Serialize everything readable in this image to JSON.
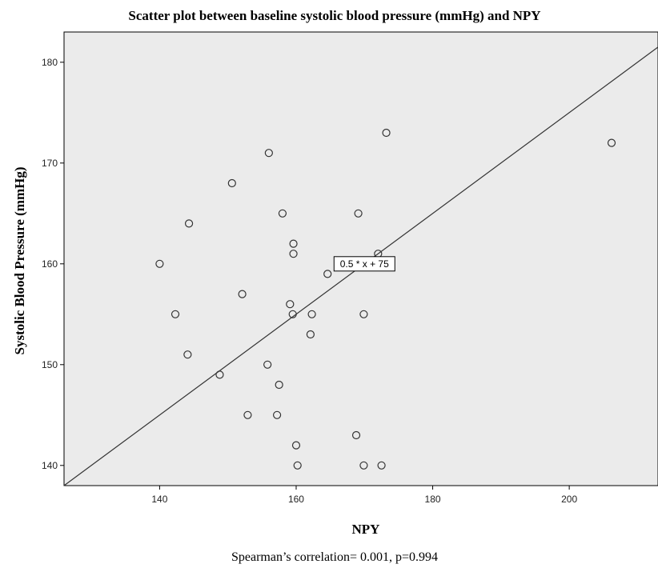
{
  "chart_data": {
    "type": "scatter",
    "title": "Scatter plot between baseline systolic blood pressure (mmHg) and NPY",
    "xlabel": "NPY",
    "ylabel": "Systolic Blood Pressure (mmHg)",
    "xlim": [
      126,
      213
    ],
    "ylim": [
      138,
      183
    ],
    "xticks": [
      140,
      160,
      180,
      200
    ],
    "yticks": [
      140,
      150,
      160,
      170,
      180
    ],
    "grid": false,
    "background": "#ebebeb",
    "point_color": "#333333",
    "fit_line": {
      "slope": 0.5,
      "intercept": 75,
      "label": "0.5 * x + 75",
      "label_at": [
        170,
        160
      ]
    },
    "annotation": "Spearman’s correlation= 0.001, p=0.994",
    "points": [
      {
        "x": 173.2,
        "y": 173
      },
      {
        "x": 206.2,
        "y": 172
      },
      {
        "x": 156.0,
        "y": 171
      },
      {
        "x": 150.6,
        "y": 168
      },
      {
        "x": 158.0,
        "y": 165
      },
      {
        "x": 169.1,
        "y": 165
      },
      {
        "x": 144.3,
        "y": 164
      },
      {
        "x": 159.6,
        "y": 162
      },
      {
        "x": 159.6,
        "y": 161
      },
      {
        "x": 172.0,
        "y": 161
      },
      {
        "x": 140.0,
        "y": 160
      },
      {
        "x": 164.6,
        "y": 159
      },
      {
        "x": 152.1,
        "y": 157
      },
      {
        "x": 159.1,
        "y": 156
      },
      {
        "x": 142.3,
        "y": 155
      },
      {
        "x": 159.5,
        "y": 155
      },
      {
        "x": 162.3,
        "y": 155
      },
      {
        "x": 169.9,
        "y": 155
      },
      {
        "x": 162.1,
        "y": 153
      },
      {
        "x": 144.1,
        "y": 151
      },
      {
        "x": 155.8,
        "y": 150
      },
      {
        "x": 148.8,
        "y": 149
      },
      {
        "x": 157.5,
        "y": 148
      },
      {
        "x": 152.9,
        "y": 145
      },
      {
        "x": 157.2,
        "y": 145
      },
      {
        "x": 168.8,
        "y": 143
      },
      {
        "x": 160.0,
        "y": 142
      },
      {
        "x": 160.2,
        "y": 140
      },
      {
        "x": 169.9,
        "y": 140
      },
      {
        "x": 172.5,
        "y": 140
      }
    ]
  }
}
